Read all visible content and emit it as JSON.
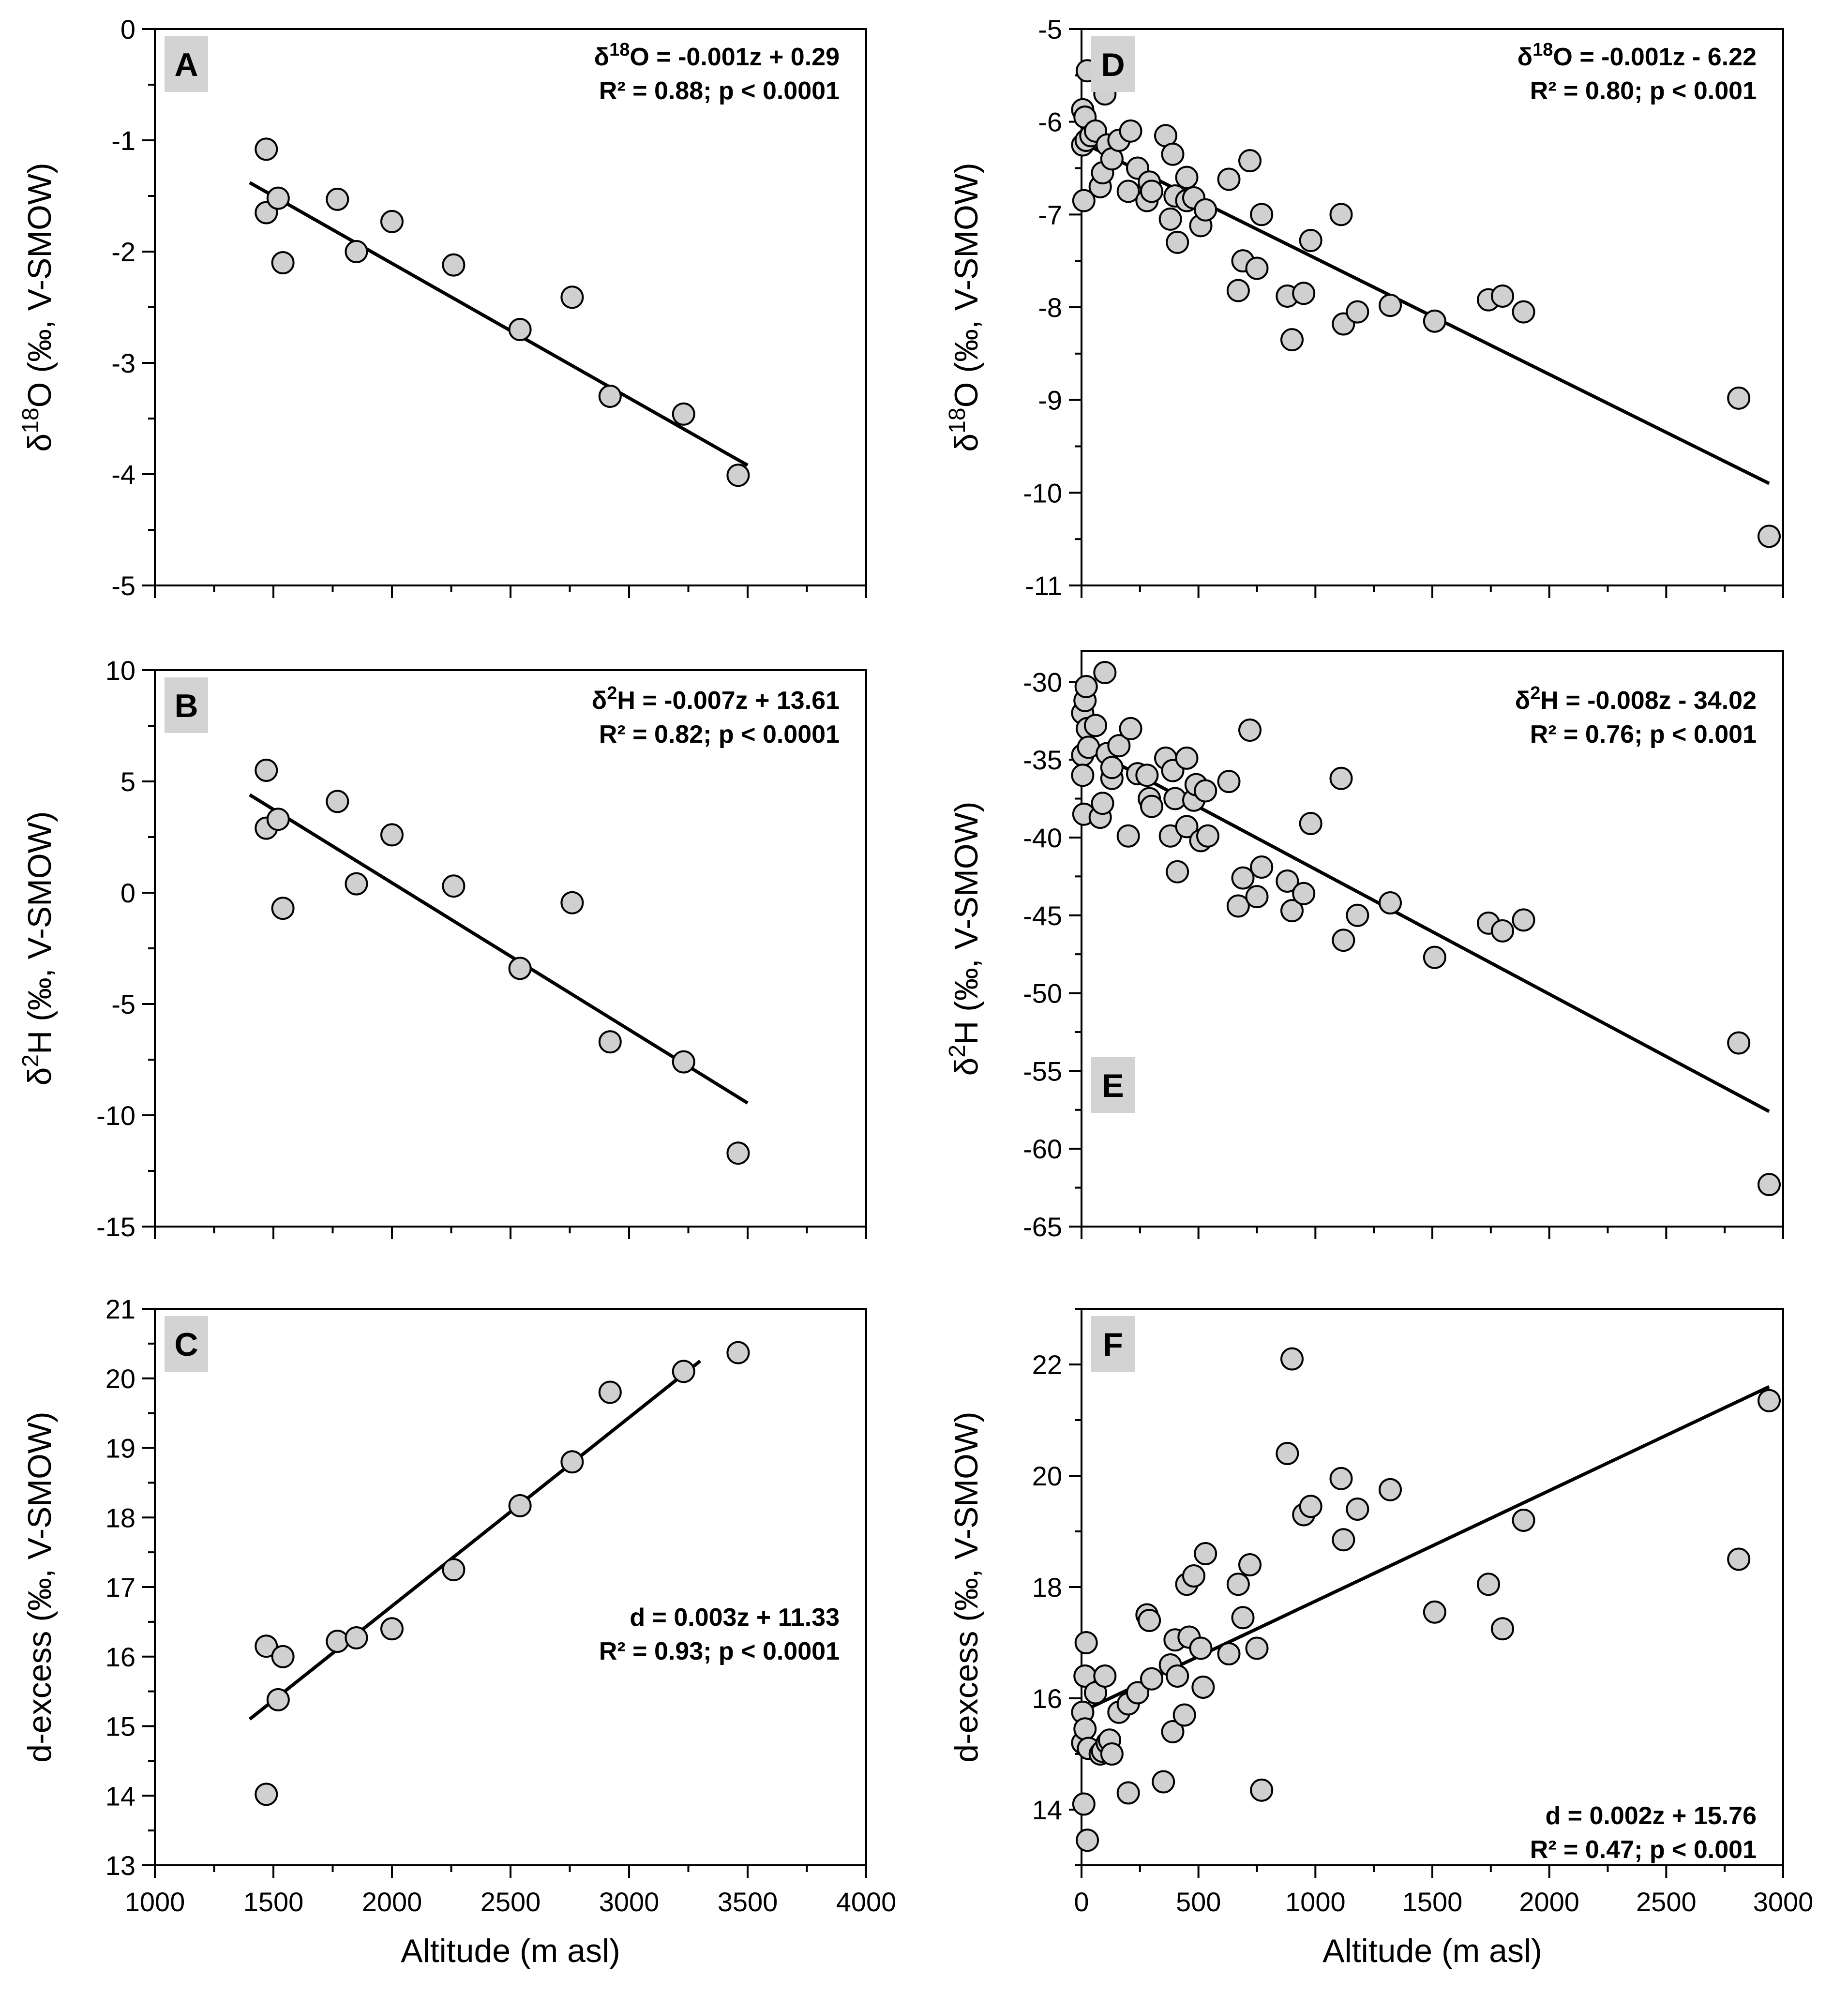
{
  "figure": {
    "x_axis_title": "Altitude (m asl)"
  },
  "chart_data": [
    {
      "id": "A",
      "type": "scatter",
      "panel_label": "A",
      "ylabel_prefix": "δ",
      "ylabel_super": "18",
      "ylabel_rest": "O (‰, V-SMOW)",
      "eq_line1_prefix": "δ",
      "eq_line1_super": "18",
      "eq_line1_rest": "O  = -0.001z + 0.29",
      "eq_line2": "R² = 0.88; p < 0.0001",
      "xlim": [
        1000,
        4000
      ],
      "ylim": [
        -5,
        0
      ],
      "xticks": [
        1000,
        1500,
        2000,
        2500,
        3000,
        3500,
        4000
      ],
      "yticks": [
        0,
        -1,
        -2,
        -3,
        -4,
        -5
      ],
      "show_xtick_labels": false,
      "points": [
        [
          1470,
          -1.08
        ],
        [
          1470,
          -1.65
        ],
        [
          1520,
          -1.52
        ],
        [
          1540,
          -2.1
        ],
        [
          1770,
          -1.53
        ],
        [
          1850,
          -2.0
        ],
        [
          2000,
          -1.73
        ],
        [
          2260,
          -2.12
        ],
        [
          2540,
          -2.7
        ],
        [
          2760,
          -2.41
        ],
        [
          2920,
          -3.3
        ],
        [
          3230,
          -3.46
        ],
        [
          3460,
          -4.01
        ]
      ],
      "fit": [
        [
          1400,
          -1.38
        ],
        [
          3500,
          -3.92
        ]
      ]
    },
    {
      "id": "B",
      "type": "scatter",
      "panel_label": "B",
      "ylabel_prefix": "δ",
      "ylabel_super": "2",
      "ylabel_rest": "H (‰, V-SMOW)",
      "eq_line1_prefix": "δ",
      "eq_line1_super": "2",
      "eq_line1_rest": "H = -0.007z + 13.61",
      "eq_line2": "R² = 0.82; p < 0.0001",
      "xlim": [
        1000,
        4000
      ],
      "ylim": [
        -15,
        10
      ],
      "xticks": [
        1000,
        1500,
        2000,
        2500,
        3000,
        3500,
        4000
      ],
      "yticks": [
        10,
        5,
        0,
        -5,
        -10,
        -15
      ],
      "show_xtick_labels": false,
      "points": [
        [
          1470,
          5.5
        ],
        [
          1470,
          2.9
        ],
        [
          1520,
          3.3
        ],
        [
          1540,
          -0.7
        ],
        [
          1770,
          4.1
        ],
        [
          1850,
          0.4
        ],
        [
          2000,
          2.6
        ],
        [
          2260,
          0.3
        ],
        [
          2540,
          -3.4
        ],
        [
          2760,
          -0.45
        ],
        [
          2920,
          -6.7
        ],
        [
          3230,
          -7.6
        ],
        [
          3460,
          -11.7
        ]
      ],
      "fit": [
        [
          1400,
          4.4
        ],
        [
          3500,
          -9.45
        ]
      ]
    },
    {
      "id": "C",
      "type": "scatter",
      "panel_label": "C",
      "ylabel": "d-excess (‰, V-SMOW)",
      "eq_line1": "d = 0.003z + 11.33",
      "eq_line2": "R² = 0.93; p < 0.0001",
      "xlim": [
        1000,
        4000
      ],
      "ylim": [
        13,
        21
      ],
      "xticks": [
        1000,
        1500,
        2000,
        2500,
        3000,
        3500,
        4000
      ],
      "yticks": [
        21,
        20,
        19,
        18,
        17,
        16,
        15,
        14,
        13
      ],
      "show_xtick_labels": true,
      "xlabel": "Altitude (m asl)",
      "points": [
        [
          1470,
          16.15
        ],
        [
          1470,
          14.02
        ],
        [
          1520,
          15.38
        ],
        [
          1540,
          16.0
        ],
        [
          1770,
          16.22
        ],
        [
          1850,
          16.27
        ],
        [
          2000,
          16.4
        ],
        [
          2260,
          17.25
        ],
        [
          2540,
          18.17
        ],
        [
          2760,
          18.8
        ],
        [
          2920,
          19.8
        ],
        [
          3230,
          20.1
        ],
        [
          3460,
          20.37
        ]
      ],
      "fit": [
        [
          1400,
          15.1
        ],
        [
          3300,
          20.25
        ]
      ]
    },
    {
      "id": "D",
      "type": "scatter",
      "panel_label": "D",
      "ylabel_prefix": "δ",
      "ylabel_super": "18",
      "ylabel_rest": "O (‰, V-SMOW)",
      "eq_line1_prefix": "δ",
      "eq_line1_super": "18",
      "eq_line1_rest": "O  = -0.001z - 6.22",
      "eq_line2": "R² = 0.80; p < 0.001",
      "xlim": [
        0,
        3000
      ],
      "ylim": [
        -11,
        -5
      ],
      "xticks": [
        0,
        500,
        1000,
        1500,
        2000,
        2500,
        3000
      ],
      "yticks": [
        -5,
        -6,
        -7,
        -8,
        -9,
        -10,
        -11
      ],
      "show_xtick_labels": false,
      "points": [
        [
          5,
          -5.87
        ],
        [
          5,
          -6.25
        ],
        [
          10,
          -6.85
        ],
        [
          15,
          -5.95
        ],
        [
          20,
          -6.2
        ],
        [
          25,
          -5.45
        ],
        [
          40,
          -6.15
        ],
        [
          60,
          -6.1
        ],
        [
          80,
          -6.7
        ],
        [
          90,
          -6.55
        ],
        [
          100,
          -5.7
        ],
        [
          110,
          -6.25
        ],
        [
          130,
          -6.4
        ],
        [
          160,
          -6.2
        ],
        [
          200,
          -6.75
        ],
        [
          210,
          -6.1
        ],
        [
          240,
          -6.5
        ],
        [
          280,
          -6.85
        ],
        [
          290,
          -6.65
        ],
        [
          300,
          -6.75
        ],
        [
          360,
          -6.15
        ],
        [
          380,
          -7.05
        ],
        [
          390,
          -6.35
        ],
        [
          400,
          -6.8
        ],
        [
          410,
          -7.3
        ],
        [
          450,
          -6.85
        ],
        [
          450,
          -6.6
        ],
        [
          480,
          -6.82
        ],
        [
          510,
          -7.12
        ],
        [
          530,
          -6.95
        ],
        [
          630,
          -6.62
        ],
        [
          670,
          -7.82
        ],
        [
          690,
          -7.5
        ],
        [
          720,
          -6.42
        ],
        [
          750,
          -7.58
        ],
        [
          770,
          -7.0
        ],
        [
          880,
          -7.88
        ],
        [
          900,
          -8.35
        ],
        [
          950,
          -7.85
        ],
        [
          980,
          -7.28
        ],
        [
          1110,
          -7.0
        ],
        [
          1120,
          -8.18
        ],
        [
          1180,
          -8.05
        ],
        [
          1320,
          -7.98
        ],
        [
          1510,
          -8.15
        ],
        [
          1740,
          -7.92
        ],
        [
          1800,
          -7.88
        ],
        [
          1890,
          -8.05
        ],
        [
          2810,
          -8.98
        ],
        [
          2940,
          -10.47
        ]
      ],
      "fit": [
        [
          0,
          -6.22
        ],
        [
          2940,
          -9.9
        ]
      ]
    },
    {
      "id": "E",
      "type": "scatter",
      "panel_label": "E",
      "ylabel_prefix": "δ",
      "ylabel_super": "2",
      "ylabel_rest": "H (‰, V-SMOW)",
      "eq_line1_prefix": "δ",
      "eq_line1_super": "2",
      "eq_line1_rest": "H = -0.008z - 34.02",
      "eq_line2": "R² = 0.76; p < 0.001",
      "xlim": [
        0,
        3000
      ],
      "ylim": [
        -65,
        -28
      ],
      "xticks": [
        0,
        500,
        1000,
        1500,
        2000,
        2500,
        3000
      ],
      "yticks": [
        -30,
        -35,
        -40,
        -45,
        -50,
        -55,
        -60,
        -65
      ],
      "show_xtick_labels": false,
      "points": [
        [
          5,
          -32.0
        ],
        [
          5,
          -34.7
        ],
        [
          5,
          -36.0
        ],
        [
          10,
          -38.5
        ],
        [
          15,
          -31.2
        ],
        [
          20,
          -30.3
        ],
        [
          25,
          -33.0
        ],
        [
          30,
          -34.2
        ],
        [
          60,
          -32.8
        ],
        [
          80,
          -38.7
        ],
        [
          90,
          -37.8
        ],
        [
          100,
          -29.4
        ],
        [
          110,
          -34.6
        ],
        [
          130,
          -36.2
        ],
        [
          130,
          -35.5
        ],
        [
          160,
          -34.1
        ],
        [
          200,
          -39.9
        ],
        [
          210,
          -33.0
        ],
        [
          240,
          -35.9
        ],
        [
          280,
          -36.0
        ],
        [
          290,
          -37.5
        ],
        [
          300,
          -38.0
        ],
        [
          360,
          -34.9
        ],
        [
          380,
          -39.9
        ],
        [
          390,
          -35.7
        ],
        [
          400,
          -37.5
        ],
        [
          410,
          -42.2
        ],
        [
          450,
          -34.9
        ],
        [
          450,
          -39.3
        ],
        [
          480,
          -37.6
        ],
        [
          490,
          -36.6
        ],
        [
          510,
          -40.2
        ],
        [
          530,
          -37.0
        ],
        [
          540,
          -39.9
        ],
        [
          630,
          -36.4
        ],
        [
          670,
          -44.4
        ],
        [
          690,
          -42.6
        ],
        [
          720,
          -33.1
        ],
        [
          750,
          -43.8
        ],
        [
          770,
          -41.9
        ],
        [
          880,
          -42.8
        ],
        [
          900,
          -44.7
        ],
        [
          950,
          -43.6
        ],
        [
          980,
          -39.1
        ],
        [
          1110,
          -36.2
        ],
        [
          1120,
          -46.6
        ],
        [
          1180,
          -45.0
        ],
        [
          1320,
          -44.2
        ],
        [
          1510,
          -47.7
        ],
        [
          1740,
          -45.5
        ],
        [
          1800,
          -46.0
        ],
        [
          1890,
          -45.3
        ],
        [
          2810,
          -53.2
        ],
        [
          2940,
          -62.3
        ]
      ],
      "fit": [
        [
          0,
          -34.02
        ],
        [
          2940,
          -57.6
        ]
      ]
    },
    {
      "id": "F",
      "type": "scatter",
      "panel_label": "F",
      "ylabel": "d-excess (‰, V-SMOW)",
      "eq_line1": "d = 0.002z + 15.76",
      "eq_line2": "R² = 0.47; p < 0.001",
      "xlim": [
        0,
        3000
      ],
      "ylim": [
        13,
        23
      ],
      "xticks": [
        0,
        500,
        1000,
        1500,
        2000,
        2500,
        3000
      ],
      "yticks": [
        22,
        20,
        18,
        16,
        14
      ],
      "show_xtick_labels": true,
      "xlabel": "Altitude (m asl)",
      "points": [
        [
          5,
          15.75
        ],
        [
          5,
          15.2
        ],
        [
          10,
          14.1
        ],
        [
          15,
          16.4
        ],
        [
          15,
          15.45
        ],
        [
          20,
          17.0
        ],
        [
          25,
          13.45
        ],
        [
          30,
          15.1
        ],
        [
          60,
          16.1
        ],
        [
          80,
          15.0
        ],
        [
          90,
          15.05
        ],
        [
          100,
          16.4
        ],
        [
          110,
          15.2
        ],
        [
          120,
          15.25
        ],
        [
          130,
          15.0
        ],
        [
          160,
          15.75
        ],
        [
          200,
          15.9
        ],
        [
          200,
          14.3
        ],
        [
          240,
          16.1
        ],
        [
          280,
          17.5
        ],
        [
          290,
          17.4
        ],
        [
          300,
          16.35
        ],
        [
          350,
          14.5
        ],
        [
          380,
          16.6
        ],
        [
          390,
          15.4
        ],
        [
          400,
          17.05
        ],
        [
          410,
          16.4
        ],
        [
          440,
          15.7
        ],
        [
          450,
          18.05
        ],
        [
          460,
          17.1
        ],
        [
          480,
          18.2
        ],
        [
          510,
          16.9
        ],
        [
          520,
          16.2
        ],
        [
          530,
          18.6
        ],
        [
          630,
          16.8
        ],
        [
          670,
          18.05
        ],
        [
          690,
          17.45
        ],
        [
          720,
          18.4
        ],
        [
          750,
          16.9
        ],
        [
          770,
          14.35
        ],
        [
          880,
          20.4
        ],
        [
          900,
          22.1
        ],
        [
          950,
          19.3
        ],
        [
          980,
          19.45
        ],
        [
          1110,
          19.95
        ],
        [
          1120,
          18.85
        ],
        [
          1180,
          19.4
        ],
        [
          1320,
          19.75
        ],
        [
          1510,
          17.55
        ],
        [
          1740,
          18.05
        ],
        [
          1800,
          17.25
        ],
        [
          1890,
          19.2
        ],
        [
          2810,
          18.5
        ],
        [
          2940,
          21.35
        ]
      ],
      "fit": [
        [
          0,
          15.76
        ],
        [
          2940,
          21.6
        ]
      ]
    }
  ]
}
